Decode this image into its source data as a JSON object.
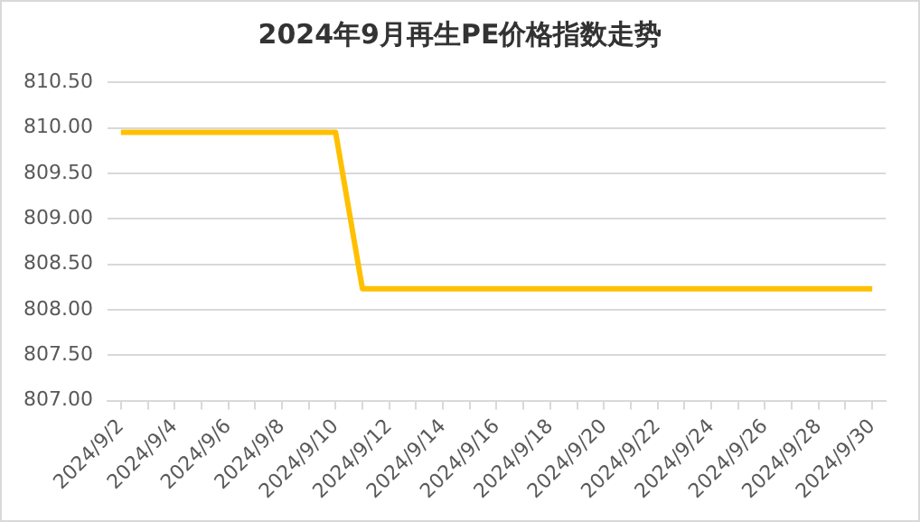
{
  "chart_data": {
    "type": "line",
    "title": "2024年9月再生PE价格指数走势",
    "categories": [
      "2024/9/2",
      null,
      "2024/9/4",
      null,
      "2024/9/6",
      null,
      "2024/9/8",
      null,
      "2024/9/10",
      null,
      "2024/9/12",
      null,
      "2024/9/14",
      null,
      "2024/9/16",
      null,
      "2024/9/18",
      null,
      "2024/9/20",
      null,
      "2024/9/22",
      null,
      "2024/9/24",
      null,
      "2024/9/26",
      null,
      "2024/9/28",
      null,
      "2024/9/30"
    ],
    "series": [
      {
        "color": "#ffc000",
        "values": [
          809.95,
          809.95,
          809.95,
          809.95,
          809.95,
          809.95,
          809.95,
          809.95,
          809.95,
          808.23,
          808.23,
          808.23,
          808.23,
          808.23,
          808.23,
          808.23,
          808.23,
          808.23,
          808.23,
          808.23,
          808.23,
          808.23,
          808.23,
          808.23,
          808.23,
          808.23,
          808.23,
          808.23,
          808.23
        ]
      }
    ],
    "ylim": [
      807,
      810.5
    ],
    "yticks": [
      {
        "value": 807,
        "label": "807.00"
      },
      {
        "value": 807.5,
        "label": "807.50"
      },
      {
        "value": 808,
        "label": "808.00"
      },
      {
        "value": 808.5,
        "label": "808.50"
      },
      {
        "value": 809,
        "label": "809.00"
      },
      {
        "value": 809.5,
        "label": "809.50"
      },
      {
        "value": 810,
        "label": "810.00"
      },
      {
        "value": 810.5,
        "label": "810.50"
      }
    ],
    "grid": "y",
    "legend": false,
    "marker": "none",
    "line_style": "solid"
  }
}
